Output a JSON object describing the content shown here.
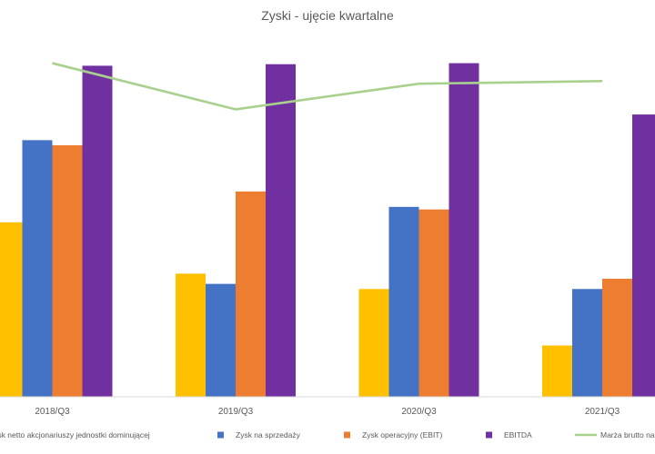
{
  "chart_data": {
    "type": "bar",
    "title": "Zyski - ujęcie kwartalne",
    "categories": [
      "2018/Q3",
      "2019/Q3",
      "2020/Q3",
      "2021/Q3"
    ],
    "series": [
      {
        "name": "Zysk netto akcjonariuszy jednostki dominującej",
        "type": "bar",
        "color": "#FFC000",
        "values": [
          3.4,
          2.4,
          2.1,
          1.0
        ]
      },
      {
        "name": "Zysk na sprzedaży",
        "type": "bar",
        "color": "#4472C4",
        "values": [
          5.0,
          2.2,
          3.7,
          2.1
        ]
      },
      {
        "name": "Zysk operacyjny (EBIT)",
        "type": "bar",
        "color": "#ED7D31",
        "values": [
          4.9,
          4.0,
          3.65,
          2.3
        ]
      },
      {
        "name": "EBITDA",
        "type": "bar",
        "color": "#7030A0",
        "values": [
          6.45,
          6.48,
          6.5,
          5.5
        ]
      },
      {
        "name": "Marża brutto na sprzedaży",
        "type": "line",
        "color": "#A9D18E",
        "values": [
          6.5,
          5.6,
          6.1,
          6.15
        ]
      }
    ],
    "ylim": [
      0,
      7.2
    ],
    "grid": false,
    "legend_position": "bottom",
    "xlabel": "",
    "ylabel": ""
  }
}
